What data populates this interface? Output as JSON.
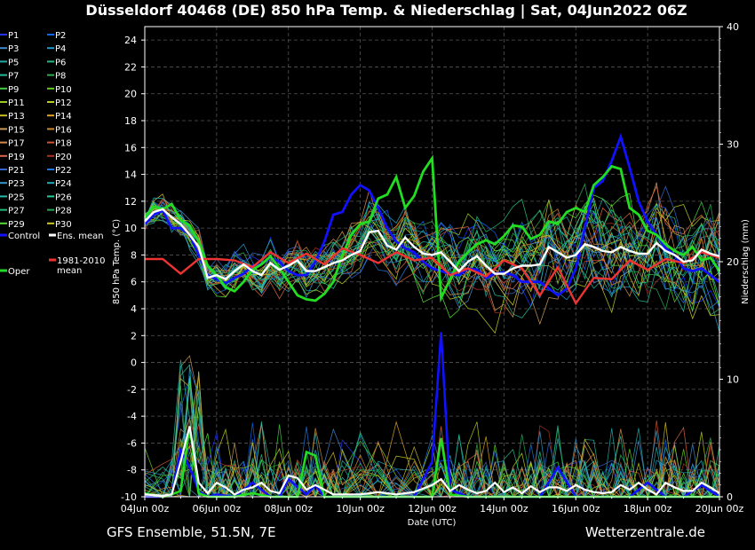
{
  "chart_data": {
    "type": "line",
    "title": "Düsseldorf 40468 (DE)  850 hPa Temp. & Niederschlag | Sat, 04Jun2022 06Z",
    "footer_left": "GFS Ensemble, 51.5N, 7E",
    "footer_right": "Wetterzentrale.de",
    "xlabel": "Date (UTC)",
    "ylabel_left": "850 hPa Temp. (°C)",
    "ylabel_right": "Niederschlag (mm)",
    "x_ticks": [
      "04Jun 00z",
      "06Jun 00z",
      "08Jun 00z",
      "10Jun 00z",
      "12Jun 00z",
      "14Jun 00z",
      "16Jun 00z",
      "18Jun 00z",
      "20Jun 00z"
    ],
    "x_range_days": [
      0,
      16
    ],
    "ylim_left": [
      -10,
      25
    ],
    "yticks_left": [
      -10,
      -8,
      -6,
      -4,
      -2,
      0,
      2,
      4,
      6,
      8,
      10,
      12,
      14,
      16,
      18,
      20,
      22,
      24
    ],
    "ylim_right": [
      0,
      40
    ],
    "yticks_right": [
      0,
      10,
      20,
      30,
      40
    ],
    "grid": true,
    "legend_placement": "left-outside",
    "legend": [
      {
        "name": "P1",
        "color": "#2233ff"
      },
      {
        "name": "P2",
        "color": "#1166ee"
      },
      {
        "name": "P3",
        "color": "#4488cc"
      },
      {
        "name": "P4",
        "color": "#2299cc"
      },
      {
        "name": "P5",
        "color": "#22aaaa"
      },
      {
        "name": "P6",
        "color": "#22bb88"
      },
      {
        "name": "P7",
        "color": "#22bb99"
      },
      {
        "name": "P8",
        "color": "#33aa55"
      },
      {
        "name": "P9",
        "color": "#44cc44"
      },
      {
        "name": "P10",
        "color": "#66cc22"
      },
      {
        "name": "P11",
        "color": "#99cc22"
      },
      {
        "name": "P12",
        "color": "#bbcc22"
      },
      {
        "name": "P13",
        "color": "#ccbb22"
      },
      {
        "name": "P14",
        "color": "#dda522"
      },
      {
        "name": "P15",
        "color": "#cc9955"
      },
      {
        "name": "P16",
        "color": "#cc8833"
      },
      {
        "name": "P17",
        "color": "#dd8844"
      },
      {
        "name": "P18",
        "color": "#cc5533"
      },
      {
        "name": "P19",
        "color": "#dd6644"
      },
      {
        "name": "P20",
        "color": "#aa3322"
      },
      {
        "name": "P21",
        "color": "#3366cc"
      },
      {
        "name": "P22",
        "color": "#2277dd"
      },
      {
        "name": "P23",
        "color": "#3399cc"
      },
      {
        "name": "P24",
        "color": "#22aabb"
      },
      {
        "name": "P25",
        "color": "#22bbaa"
      },
      {
        "name": "P26",
        "color": "#22cc99"
      },
      {
        "name": "P27",
        "color": "#22bb77"
      },
      {
        "name": "P28",
        "color": "#22aa55"
      },
      {
        "name": "P29",
        "color": "#55dd33"
      },
      {
        "name": "P30",
        "color": "#cccc22"
      }
    ],
    "control": {
      "name": "Control",
      "color": "#1111ff"
    },
    "ens_mean": {
      "name": "Ens. mean",
      "color": "#ffffff"
    },
    "climate": {
      "name": "1981-2010 mean",
      "name_line1": "1981-2010",
      "name_line2": "mean",
      "color": "#ee3333"
    },
    "oper": {
      "name": "Oper",
      "color": "#22dd22"
    },
    "ens_mean_temp": {
      "days": [
        0,
        0.25,
        0.5,
        0.75,
        1,
        1.25,
        1.5,
        1.75,
        2,
        2.25,
        2.5,
        2.75,
        3,
        3.25,
        3.5,
        3.75,
        4,
        4.25,
        4.5,
        4.75,
        5,
        5.25,
        5.5,
        5.75,
        6,
        6.25,
        6.5,
        6.75,
        7,
        7.25,
        7.5,
        7.75,
        8,
        8.25,
        8.5,
        8.75,
        9,
        9.25,
        9.5,
        9.75,
        10,
        10.25,
        10.5,
        10.75,
        11,
        11.25,
        11.5,
        11.75,
        12,
        12.25,
        12.5,
        12.75,
        13,
        13.25,
        13.5,
        13.75,
        14,
        14.25,
        14.5,
        14.75,
        15,
        15.25,
        15.5,
        15.75,
        16
      ],
      "values": [
        10.5,
        11.2,
        11.4,
        10.8,
        10.3,
        9.5,
        8.6,
        6.3,
        6.5,
        6.2,
        6.8,
        7.3,
        6.8,
        6.5,
        7.4,
        6.9,
        7.2,
        7.6,
        6.8,
        6.8,
        7.1,
        7.4,
        7.6,
        8.0,
        8.3,
        9.7,
        9.8,
        8.7,
        8.4,
        9.3,
        8.6,
        8.1,
        8.0,
        8.2,
        7.5,
        6.8,
        7.5,
        7.9,
        7.2,
        6.6,
        6.6,
        7.0,
        7.2,
        7.2,
        7.3,
        8.6,
        8.2,
        7.8,
        8.0,
        8.8,
        8.6,
        8.3,
        8.2,
        8.6,
        8.3,
        8.1,
        8.1,
        8.9,
        8.3,
        8.0,
        7.5,
        7.6,
        8.4,
        8.1,
        7.9
      ]
    },
    "control_temp": {
      "days": [
        0,
        0.25,
        0.5,
        0.75,
        1,
        1.25,
        1.5,
        1.75,
        2,
        2.25,
        2.5,
        2.75,
        3,
        3.25,
        3.5,
        3.75,
        4,
        4.25,
        4.5,
        4.75,
        5,
        5.25,
        5.5,
        5.75,
        6,
        6.25,
        6.5,
        6.75,
        7,
        7.25,
        7.5,
        7.75,
        8,
        8.25,
        8.5,
        8.75,
        9,
        9.25,
        9.5,
        9.75,
        10,
        10.25,
        10.5,
        10.75,
        11,
        11.25,
        11.5,
        11.75,
        12,
        12.25,
        12.5,
        12.75,
        13,
        13.25,
        13.5,
        13.75,
        14,
        14.25,
        14.5,
        14.75,
        15,
        15.25,
        15.5,
        15.75,
        16
      ],
      "values": [
        10.3,
        11.0,
        11.3,
        10.0,
        10.0,
        9.5,
        8.0,
        6.5,
        6.2,
        5.9,
        6.3,
        6.6,
        7.2,
        7.3,
        7.8,
        7.5,
        6.8,
        6.5,
        6.5,
        7.5,
        9.0,
        11.0,
        11.2,
        12.5,
        13.2,
        12.8,
        11.5,
        10.0,
        9.0,
        8.5,
        8.2,
        7.5,
        7.0,
        6.8,
        6.6,
        6.5,
        7.0,
        6.9,
        6.3,
        6.6,
        6.7,
        6.5,
        6.0,
        6.0,
        6.0,
        5.5,
        5.0,
        5.5,
        7.0,
        10.0,
        13.0,
        13.5,
        15.0,
        16.8,
        14.5,
        12.0,
        10.5,
        9.5,
        8.5,
        8.0,
        7.0,
        6.8,
        7.0,
        6.5,
        6.0
      ]
    },
    "oper_temp": {
      "days": [
        0,
        0.25,
        0.5,
        0.75,
        1,
        1.25,
        1.5,
        1.75,
        2,
        2.25,
        2.5,
        2.75,
        3,
        3.25,
        3.5,
        3.75,
        4,
        4.25,
        4.5,
        4.75,
        5,
        5.25,
        5.5,
        5.75,
        6,
        6.25,
        6.5,
        6.75,
        7,
        7.25,
        7.5,
        7.75,
        8,
        8.25,
        8.5,
        8.75,
        9,
        9.25,
        9.5,
        9.75,
        10,
        10.25,
        10.5,
        10.75,
        11,
        11.25,
        11.5,
        11.75,
        12,
        12.25,
        12.5,
        12.75,
        13,
        13.25,
        13.5,
        13.75,
        14,
        14.25,
        14.5,
        14.75,
        15,
        15.25,
        15.5,
        15.75,
        16
      ],
      "values": [
        10.8,
        11.6,
        11.4,
        11.8,
        10.6,
        10.2,
        9.0,
        7.2,
        6.5,
        5.6,
        5.3,
        6.0,
        6.9,
        7.3,
        7.9,
        7.0,
        6.0,
        5.0,
        4.7,
        4.6,
        5.1,
        6.0,
        8.0,
        9.5,
        10.3,
        10.5,
        12.2,
        12.5,
        13.8,
        11.5,
        12.4,
        14.2,
        15.2,
        4.8,
        6.2,
        7.5,
        8.2,
        8.8,
        9.1,
        8.8,
        9.4,
        10.2,
        10.1,
        9.2,
        9.5,
        10.5,
        10.3,
        11.2,
        11.5,
        11.2,
        13.2,
        13.8,
        14.6,
        14.4,
        11.5,
        11.0,
        9.8,
        9.5,
        8.8,
        8.3,
        8.0,
        8.6,
        7.6,
        7.8,
        6.8
      ]
    },
    "climate_temp": {
      "days": [
        0,
        0.5,
        1,
        1.5,
        2,
        2.5,
        3,
        3.5,
        4,
        4.5,
        5,
        5.5,
        6,
        6.5,
        7,
        7.5,
        8,
        8.5,
        9,
        9.5,
        10,
        10.5,
        11,
        11.5,
        12,
        12.5,
        13,
        13.5,
        14,
        14.5,
        15,
        15.5,
        16
      ],
      "values": [
        7.7,
        7.7,
        6.6,
        7.7,
        7.7,
        7.6,
        7.1,
        8.2,
        7.4,
        8.1,
        7.3,
        8.5,
        8.0,
        7.4,
        8.2,
        7.6,
        7.8,
        6.5,
        7.0,
        6.4,
        7.6,
        7.0,
        5.0,
        7.1,
        4.4,
        6.3,
        6.2,
        7.6,
        6.9,
        7.7,
        7.4,
        8.2,
        7.8
      ]
    },
    "ens_mean_precip": {
      "days": [
        0,
        0.5,
        0.75,
        1,
        1.25,
        1.5,
        1.75,
        2,
        2.25,
        2.5,
        2.75,
        3,
        3.25,
        3.5,
        3.75,
        4,
        4.25,
        4.5,
        4.75,
        5,
        5.25,
        5.5,
        6,
        6.5,
        7,
        7.5,
        8,
        8.25,
        8.5,
        8.75,
        9,
        9.25,
        9.5,
        9.75,
        10,
        10.25,
        10.5,
        10.75,
        11,
        11.25,
        11.5,
        11.75,
        12,
        12.25,
        12.5,
        12.75,
        13,
        13.25,
        13.5,
        13.75,
        14,
        14.25,
        14.5,
        14.75,
        15,
        15.25,
        15.5,
        15.75,
        16
      ],
      "values": [
        0.2,
        0.1,
        0.2,
        3.0,
        6.0,
        1.2,
        0.3,
        1.2,
        0.8,
        0.2,
        0.6,
        0.8,
        1.2,
        0.5,
        0.3,
        1.8,
        1.6,
        0.6,
        1.0,
        0.6,
        0.2,
        0.2,
        0.2,
        0.4,
        0.2,
        0.4,
        1.0,
        1.5,
        0.5,
        1.0,
        0.6,
        0.3,
        0.5,
        1.2,
        0.4,
        0.8,
        0.3,
        0.9,
        0.4,
        0.8,
        0.8,
        0.5,
        1.0,
        0.6,
        0.4,
        0.3,
        0.4,
        1.0,
        0.6,
        1.2,
        0.6,
        0.2,
        1.2,
        0.8,
        0.5,
        0.5,
        1.2,
        0.8,
        0.3
      ]
    },
    "control_precip": {
      "days": [
        0,
        0.5,
        0.75,
        1,
        1.25,
        1.5,
        1.75,
        2,
        2.5,
        3,
        3.5,
        3.75,
        4,
        4.5,
        4.75,
        5,
        5.5,
        6,
        6.5,
        7,
        7.5,
        8,
        8.25,
        8.5,
        9,
        9.5,
        10,
        10.5,
        11,
        11.5,
        12,
        12.5,
        13,
        13.5,
        14,
        14.5,
        15,
        15.5,
        16
      ],
      "values": [
        0,
        0,
        0.2,
        4.0,
        2.5,
        0.5,
        0,
        0.2,
        0,
        1.2,
        0,
        0,
        1.5,
        0.2,
        1.0,
        0,
        0,
        0,
        0,
        0,
        0,
        3.0,
        14.0,
        0.6,
        0,
        0,
        0,
        0,
        0,
        2.5,
        0,
        0,
        0,
        0,
        1.2,
        0,
        0,
        1.0,
        0
      ]
    },
    "oper_precip": {
      "days": [
        0,
        0.5,
        0.75,
        1,
        1.25,
        1.5,
        1.75,
        2,
        2.5,
        3,
        3.5,
        4,
        4.25,
        4.5,
        4.75,
        5,
        5.5,
        6,
        6.5,
        7,
        7.5,
        8,
        8.25,
        8.5,
        9,
        9.5,
        10,
        10.5,
        11,
        11.5,
        12,
        12.5,
        13,
        13.5,
        14,
        14.5,
        15,
        15.5,
        16
      ],
      "values": [
        0.3,
        0,
        0.2,
        0.5,
        6.0,
        0.3,
        0,
        0,
        0,
        0.3,
        0,
        0,
        0,
        3.8,
        3.5,
        0,
        0,
        0,
        0,
        0,
        0,
        0,
        5.0,
        0.2,
        0,
        0,
        0,
        0,
        0,
        0,
        0,
        0,
        0,
        0,
        0,
        0,
        0,
        0,
        0
      ]
    }
  }
}
